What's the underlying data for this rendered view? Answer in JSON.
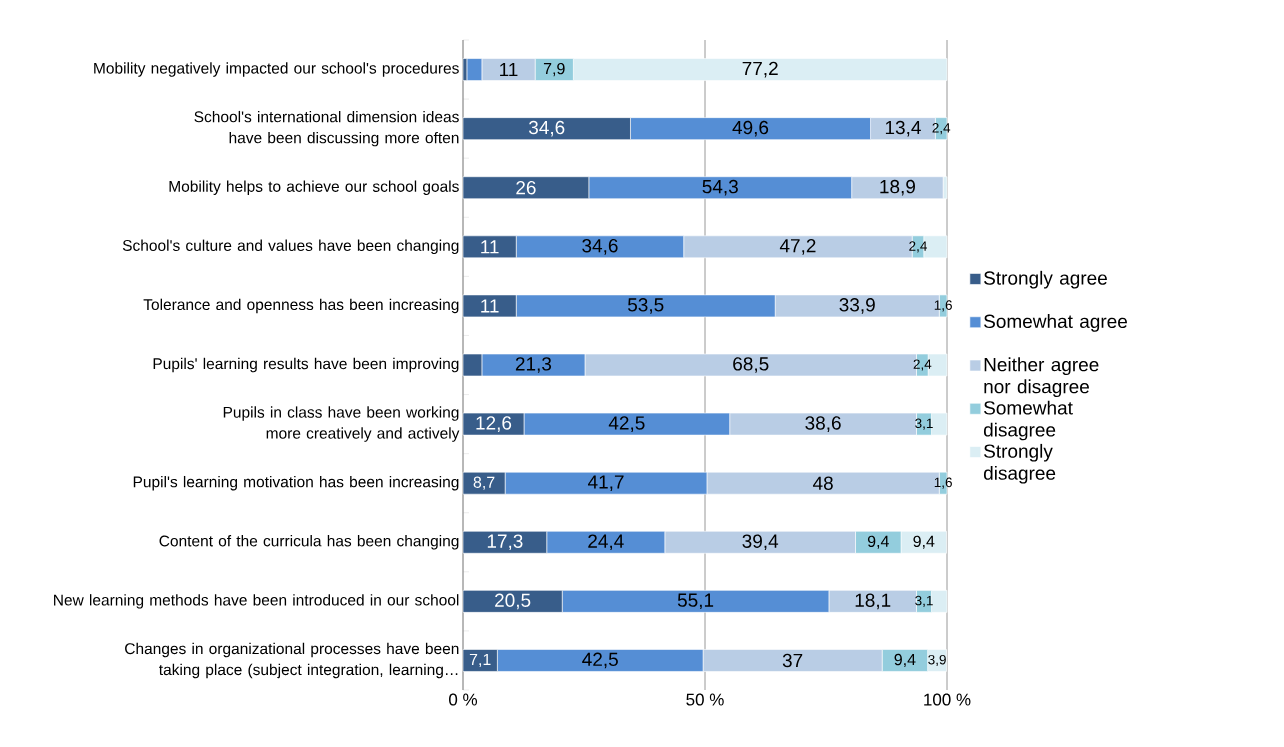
{
  "chart_data": {
    "type": "bar",
    "orientation": "horizontal",
    "stacked": true,
    "categories": [
      "Mobility negatively impacted our school's procedures",
      "School's international dimension ideas have been discussing more often",
      "Mobility helps to achieve our school goals",
      "School's culture and values have been changing",
      "Tolerance and openness has been increasing",
      "Pupils' learning results have been improving",
      "Pupils in class have been working more creatively and actively",
      "Pupil's learning motivation has been increasing",
      "Content of the curricula has been changing",
      "New learning methods have been introduced in our school",
      "Changes in organizational processes have been taking place (subject integration, learning…"
    ],
    "series": [
      {
        "name": "Strongly agree",
        "color": "#385d8a",
        "values": [
          0.8,
          34.6,
          26,
          11,
          11,
          3.9,
          12.6,
          8.7,
          17.3,
          20.5,
          7.1
        ],
        "value_labels": [
          null,
          "34,6",
          "26",
          "11",
          "11",
          null,
          "12,6",
          "8,7",
          "17,3",
          "20,5",
          "7,1"
        ]
      },
      {
        "name": "Somewhat agree",
        "color": "#558ed5",
        "values": [
          3.1,
          49.6,
          54.3,
          34.6,
          53.5,
          21.3,
          42.5,
          41.7,
          24.4,
          55.1,
          42.5
        ],
        "value_labels": [
          null,
          "49,6",
          "54,3",
          "34,6",
          "53,5",
          "21,3",
          "42,5",
          "41,7",
          "24,4",
          "55,1",
          "42,5"
        ]
      },
      {
        "name": "Neither agree nor disagree",
        "color": "#b9cde5",
        "values": [
          11,
          13.4,
          18.9,
          47.2,
          33.9,
          68.5,
          38.6,
          48,
          39.4,
          18.1,
          37
        ],
        "value_labels": [
          "11",
          "13,4",
          "18,9",
          "47,2",
          "33,9",
          "68,5",
          "38,6",
          "48",
          "39,4",
          "18,1",
          "37"
        ]
      },
      {
        "name": "Somewhat disagree",
        "color": "#93cddd",
        "values": [
          7.9,
          2.4,
          0,
          2.4,
          1.6,
          2.4,
          3.1,
          1.6,
          9.4,
          3.1,
          9.4
        ],
        "value_labels": [
          "7,9",
          "2,4",
          null,
          "2,4",
          "1,6",
          "2,4",
          "3,1",
          "1,6",
          "9,4",
          "3,1",
          "9,4"
        ]
      },
      {
        "name": "Strongly disagree",
        "color": "#dbeef4",
        "values": [
          77.2,
          0,
          0.8,
          4.8,
          0,
          3.9,
          3.2,
          0,
          9.4,
          3.2,
          3.9
        ],
        "value_labels": [
          "77,2",
          null,
          null,
          null,
          null,
          null,
          null,
          null,
          "9,4",
          null,
          "3,9"
        ]
      }
    ],
    "xlim": [
      0,
      100
    ],
    "xticks": [
      {
        "value": 0,
        "label": "0 %"
      },
      {
        "value": 50,
        "label": "50 %"
      },
      {
        "value": 100,
        "label": "100 %"
      }
    ],
    "grid": "x",
    "legend": "right"
  }
}
